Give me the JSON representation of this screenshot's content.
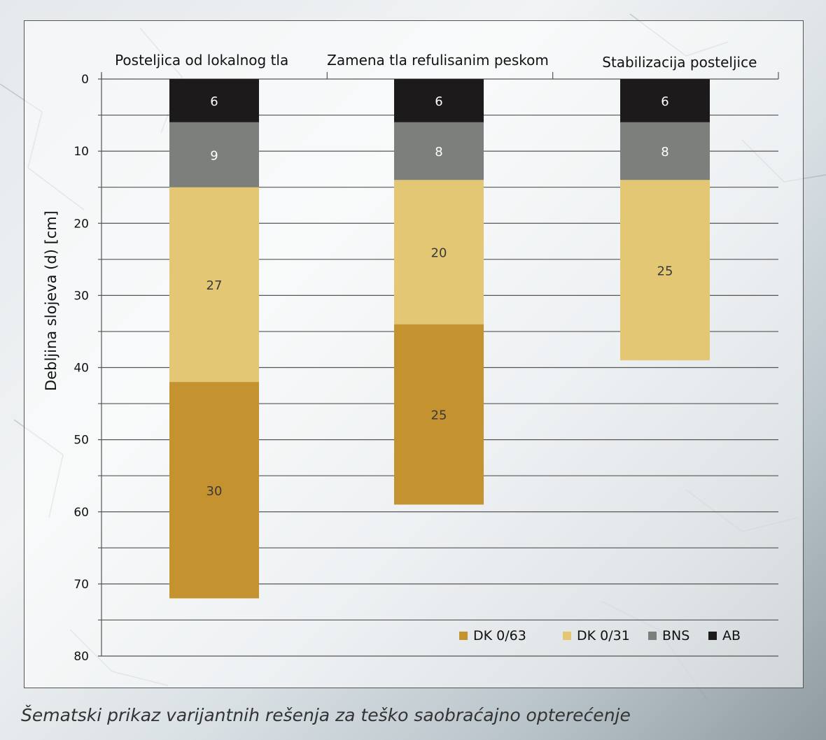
{
  "caption": "Šematski prikaz varijantnih rešenja za teško saobraćajno opterećenje",
  "chart_data": {
    "type": "bar",
    "stacked": true,
    "orientation": "vertical-downward",
    "title": "",
    "xlabel": "",
    "ylabel": "Debljina slojeva (d) [cm]",
    "ylim": [
      0,
      80
    ],
    "yticks": [
      "0",
      "10",
      "20",
      "30",
      "40",
      "50",
      "60",
      "70",
      "80"
    ],
    "grid": true,
    "legend_position": "bottom-right",
    "categories": [
      "Posteljica od lokalnog tla",
      "Zamena tla refulisanim peskom",
      "Stabilizacija posteljice"
    ],
    "series": [
      {
        "name": "AB",
        "color": "#1c1a1b",
        "label_color": "#ffffff",
        "values": [
          6,
          6,
          6
        ]
      },
      {
        "name": "BNS",
        "color": "#7d7f7d",
        "label_color": "#ffffff",
        "values": [
          9,
          8,
          8
        ]
      },
      {
        "name": "DK 0/31",
        "color": "#e3c774",
        "label_color": "#3a3a3a",
        "values": [
          27,
          20,
          25
        ]
      },
      {
        "name": "DK 0/63",
        "color": "#c4932f",
        "label_color": "#3a3a3a",
        "values": [
          30,
          25,
          0
        ]
      }
    ],
    "legend_order": [
      "DK 0/63",
      "DK 0/31",
      "BNS",
      "AB"
    ]
  }
}
